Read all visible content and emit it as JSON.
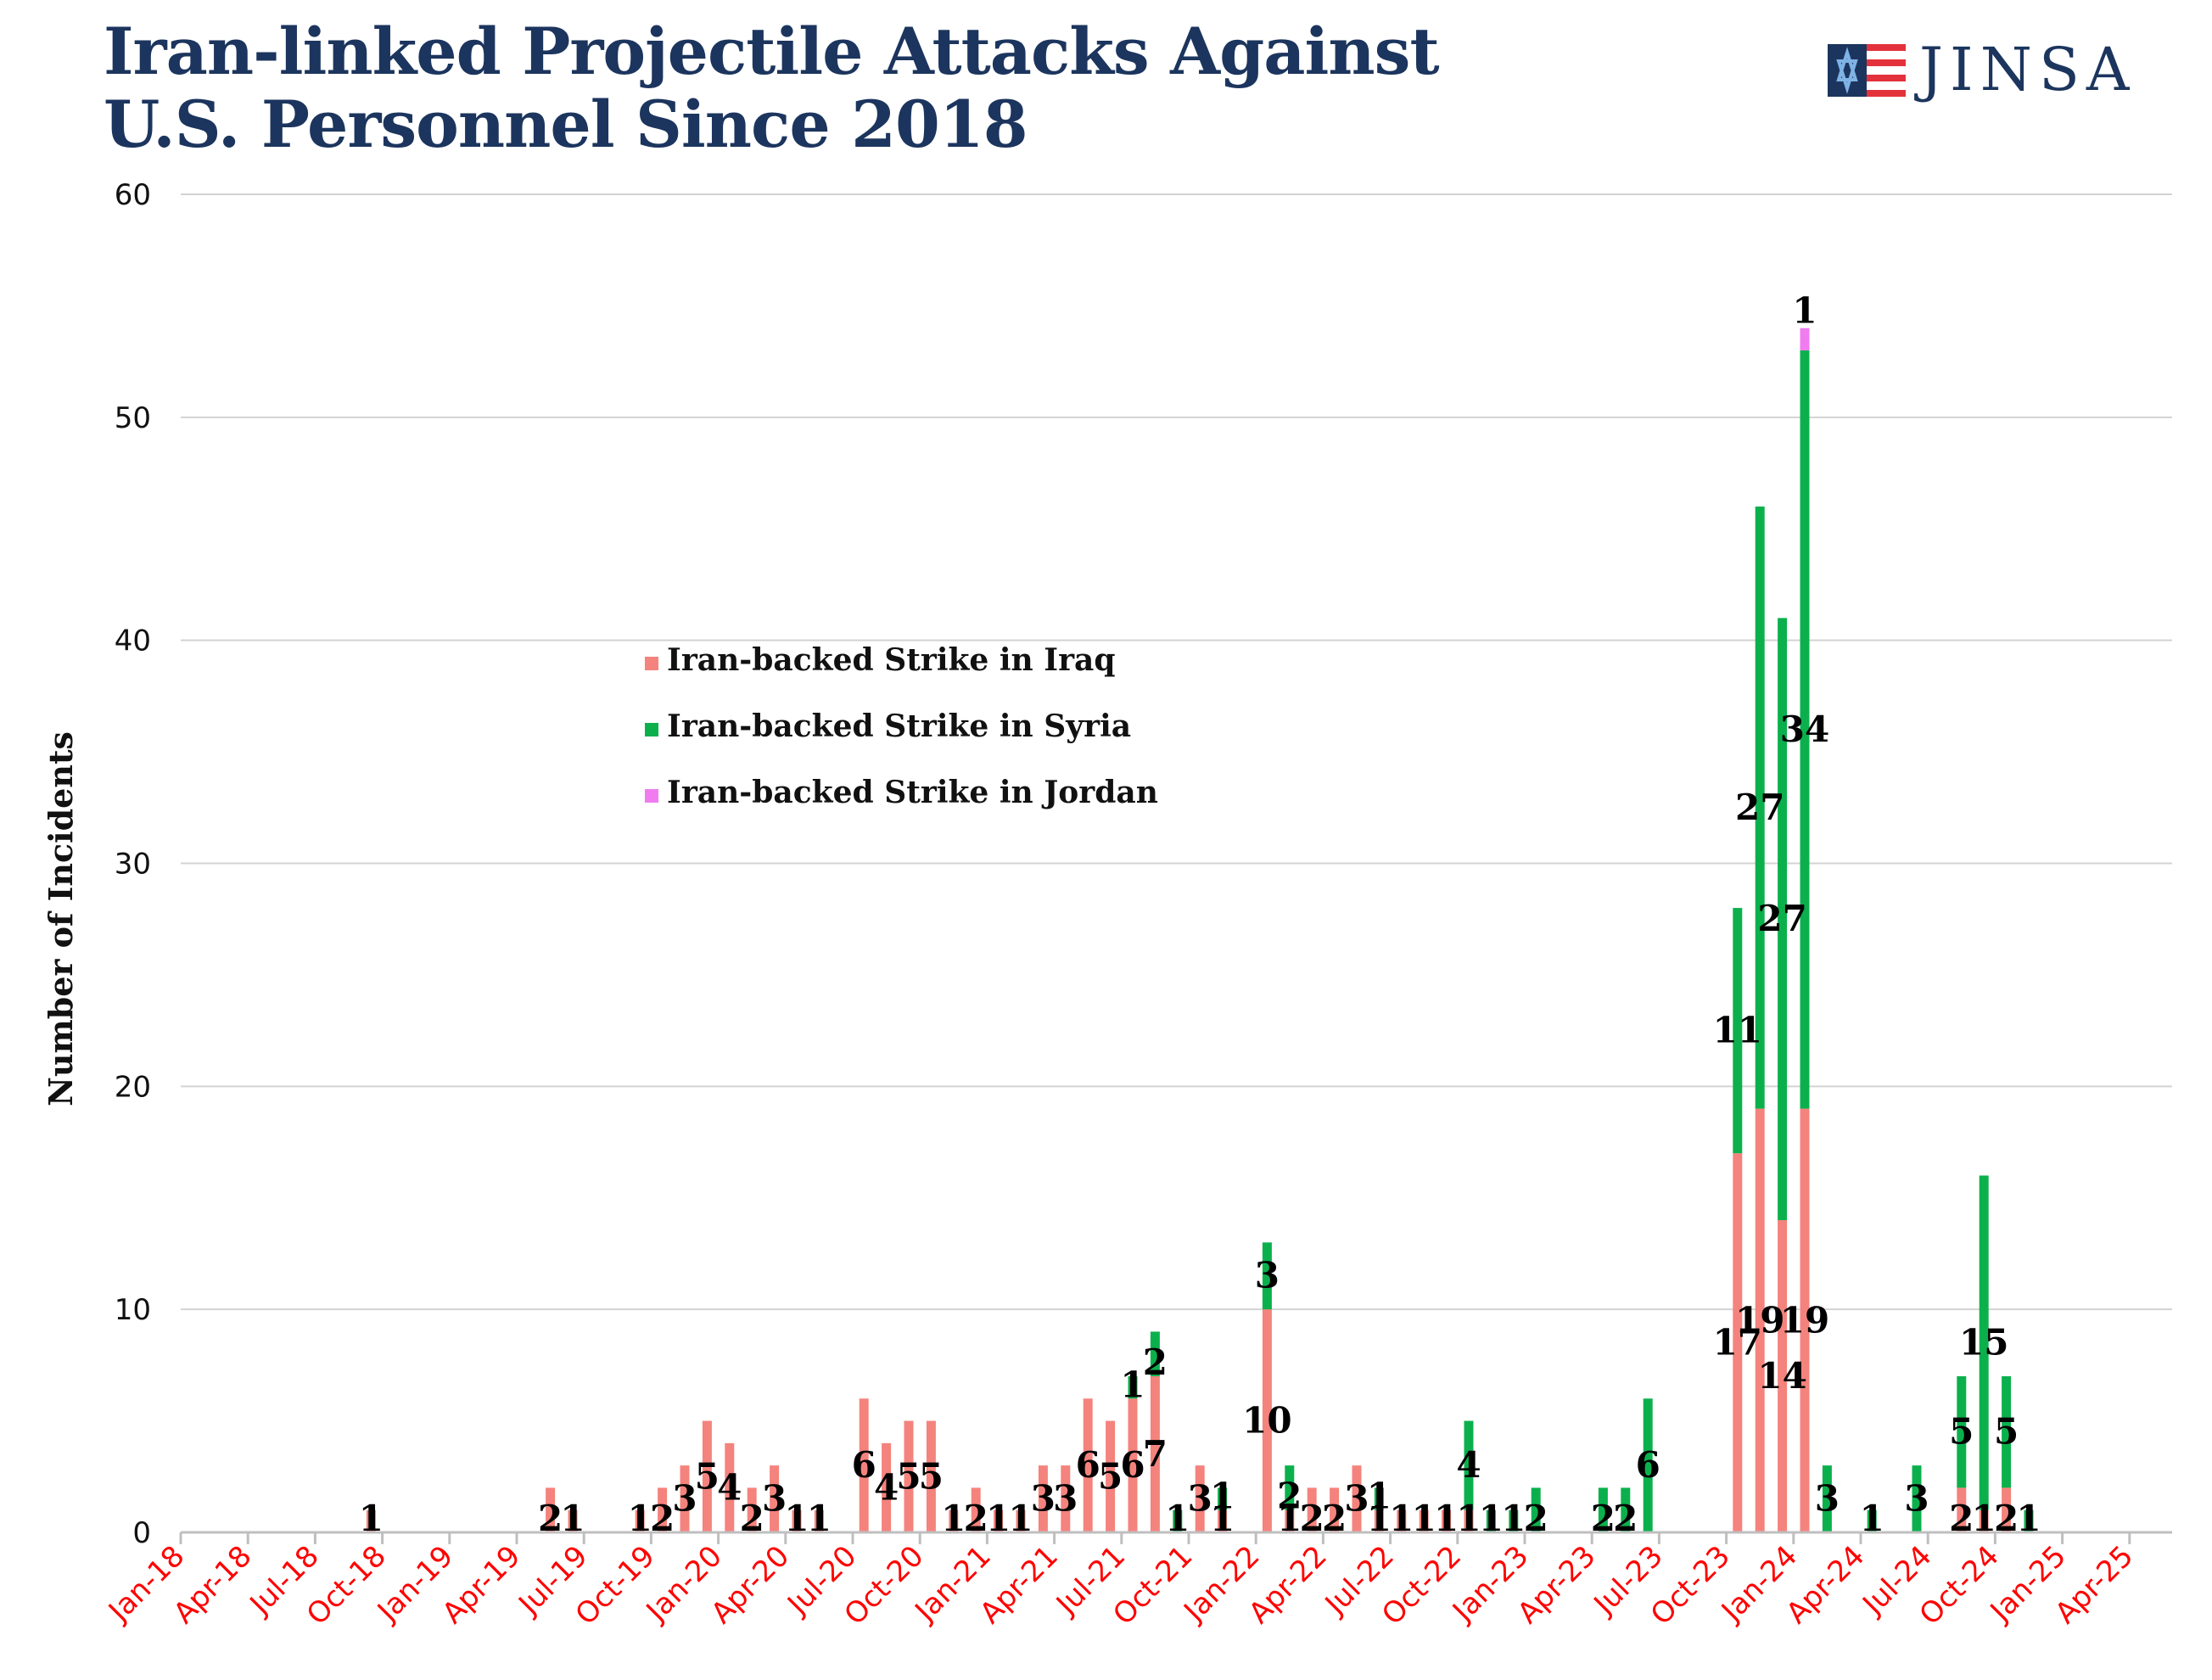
{
  "title_line1": "Iran-linked Projectile Attacks Against",
  "title_line2": "U.S. Personnel Since 2018",
  "logo_text": "JINSA",
  "chart_data": {
    "type": "bar",
    "stacked": true,
    "ylabel": "Number of Incidents",
    "ylim": [
      0,
      60
    ],
    "yticks": [
      0,
      10,
      20,
      30,
      40,
      50,
      60
    ],
    "grid": true,
    "legend_position": "upper-left-center",
    "x_start": "Jan-18",
    "x_tick_labels": [
      "Jan-18",
      "Apr-18",
      "Jul-18",
      "Oct-18",
      "Jan-19",
      "Apr-19",
      "Jul-19",
      "Oct-19",
      "Jan-20",
      "Apr-20",
      "Jul-20",
      "Oct-20",
      "Jan-21",
      "Apr-21",
      "Jul-21",
      "Oct-21",
      "Jan-22",
      "Apr-22",
      "Jul-22",
      "Oct-22",
      "Jan-23",
      "Apr-23",
      "Jul-23",
      "Oct-23",
      "Jan-24",
      "Apr-24",
      "Jul-24",
      "Oct-24",
      "Jan-25",
      "Apr-25"
    ],
    "x_tick_color": "#ff0000",
    "categories": [
      "Jan-18",
      "Feb-18",
      "Mar-18",
      "Apr-18",
      "May-18",
      "Jun-18",
      "Jul-18",
      "Aug-18",
      "Sep-18",
      "Oct-18",
      "Nov-18",
      "Dec-18",
      "Jan-19",
      "Feb-19",
      "Mar-19",
      "Apr-19",
      "May-19",
      "Jun-19",
      "Jul-19",
      "Aug-19",
      "Sep-19",
      "Oct-19",
      "Nov-19",
      "Dec-19",
      "Jan-20",
      "Feb-20",
      "Mar-20",
      "Apr-20",
      "May-20",
      "Jun-20",
      "Jul-20",
      "Aug-20",
      "Sep-20",
      "Oct-20",
      "Nov-20",
      "Dec-20",
      "Jan-21",
      "Feb-21",
      "Mar-21",
      "Apr-21",
      "May-21",
      "Jun-21",
      "Jul-21",
      "Aug-21",
      "Sep-21",
      "Oct-21",
      "Nov-21",
      "Dec-21",
      "Jan-22",
      "Feb-22",
      "Mar-22",
      "Apr-22",
      "May-22",
      "Jun-22",
      "Jul-22",
      "Aug-22",
      "Sep-22",
      "Oct-22",
      "Nov-22",
      "Dec-22",
      "Jan-23",
      "Feb-23",
      "Mar-23",
      "Apr-23",
      "May-23",
      "Jun-23",
      "Jul-23",
      "Aug-23",
      "Sep-23",
      "Oct-23",
      "Nov-23",
      "Dec-23",
      "Jan-24",
      "Feb-24",
      "Mar-24",
      "Apr-24",
      "May-24",
      "Jun-24",
      "Jul-24",
      "Aug-24",
      "Sep-24",
      "Oct-24",
      "Nov-24",
      "Dec-24",
      "Jan-25",
      "Feb-25",
      "Mar-25",
      "Apr-25",
      "May-25"
    ],
    "series": [
      {
        "name": "Iran-backed Strike in Iraq",
        "color": "#f4837d",
        "values": [
          0,
          0,
          0,
          0,
          0,
          0,
          0,
          0,
          1,
          0,
          0,
          0,
          0,
          0,
          0,
          0,
          2,
          1,
          0,
          0,
          1,
          2,
          3,
          5,
          4,
          2,
          3,
          1,
          1,
          0,
          6,
          4,
          5,
          5,
          1,
          2,
          1,
          1,
          3,
          3,
          6,
          5,
          6,
          7,
          0,
          3,
          1,
          0,
          10,
          1,
          2,
          2,
          3,
          1,
          1,
          1,
          1,
          1,
          0,
          0,
          0,
          0,
          0,
          0,
          0,
          0,
          0,
          0,
          0,
          17,
          19,
          14,
          19,
          0,
          0,
          0,
          0,
          0,
          0,
          2,
          1,
          2,
          0,
          0,
          0,
          0,
          0,
          0,
          0
        ]
      },
      {
        "name": "Iran-backed Strike in Syria",
        "color": "#0bb04d",
        "values": [
          0,
          0,
          0,
          0,
          0,
          0,
          0,
          0,
          0,
          0,
          0,
          0,
          0,
          0,
          0,
          0,
          0,
          0,
          0,
          0,
          0,
          0,
          0,
          0,
          0,
          0,
          0,
          0,
          0,
          0,
          0,
          0,
          0,
          0,
          0,
          0,
          0,
          0,
          0,
          0,
          0,
          0,
          1,
          2,
          1,
          0,
          1,
          0,
          3,
          2,
          0,
          0,
          0,
          1,
          0,
          0,
          0,
          4,
          1,
          1,
          2,
          0,
          0,
          2,
          2,
          6,
          0,
          0,
          0,
          11,
          27,
          27,
          34,
          3,
          0,
          1,
          0,
          3,
          0,
          5,
          15,
          5,
          1,
          0,
          0,
          0,
          0,
          0,
          0
        ]
      },
      {
        "name": "Iran-backed Strike in Jordan",
        "color": "#f07cf0",
        "values": [
          0,
          0,
          0,
          0,
          0,
          0,
          0,
          0,
          0,
          0,
          0,
          0,
          0,
          0,
          0,
          0,
          0,
          0,
          0,
          0,
          0,
          0,
          0,
          0,
          0,
          0,
          0,
          0,
          0,
          0,
          0,
          0,
          0,
          0,
          0,
          0,
          0,
          0,
          0,
          0,
          0,
          0,
          0,
          0,
          0,
          0,
          0,
          0,
          0,
          0,
          0,
          0,
          0,
          0,
          0,
          0,
          0,
          0,
          0,
          0,
          0,
          0,
          0,
          0,
          0,
          0,
          0,
          0,
          0,
          0,
          0,
          0,
          1,
          0,
          0,
          0,
          0,
          0,
          0,
          0,
          0,
          0,
          0,
          0,
          0,
          0,
          0,
          0,
          0
        ]
      }
    ]
  }
}
